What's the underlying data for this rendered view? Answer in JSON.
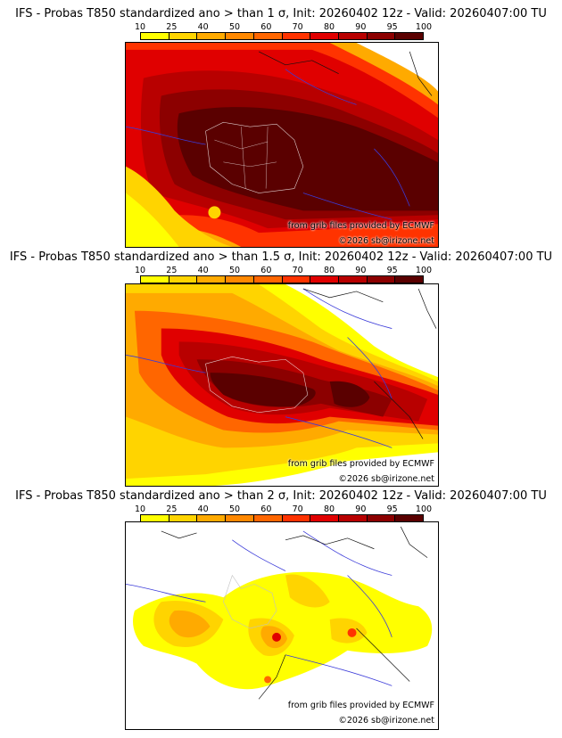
{
  "legend": {
    "ticks": [
      "10",
      "25",
      "40",
      "50",
      "60",
      "70",
      "80",
      "90",
      "95",
      "100"
    ],
    "colors": [
      "#ffff00",
      "#ffd400",
      "#ffaa00",
      "#ff8800",
      "#ff6600",
      "#ff3300",
      "#e00000",
      "#b80000",
      "#8c0000",
      "#5a0000"
    ]
  },
  "panels": [
    {
      "title": "IFS - Probas T850  standardized ano > than 1 σ, Init: 20260402 12z - Valid: 20260407:00 TU",
      "source": "from grib files provided by ECMWF",
      "copyright": "©2026 sb@irizone.net"
    },
    {
      "title": "IFS - Probas T850  standardized ano > than 1.5 σ, Init: 20260402 12z - Valid: 20260407:00 TU",
      "source": "from grib files provided by ECMWF",
      "copyright": "©2026 sb@irizone.net"
    },
    {
      "title": "IFS - Probas T850  standardized ano > than 2 σ, Init: 20260402 12z - Valid: 20260407:00 TU",
      "source": "from grib files provided by ECMWF",
      "copyright": "©2026 sb@irizone.net"
    }
  ]
}
